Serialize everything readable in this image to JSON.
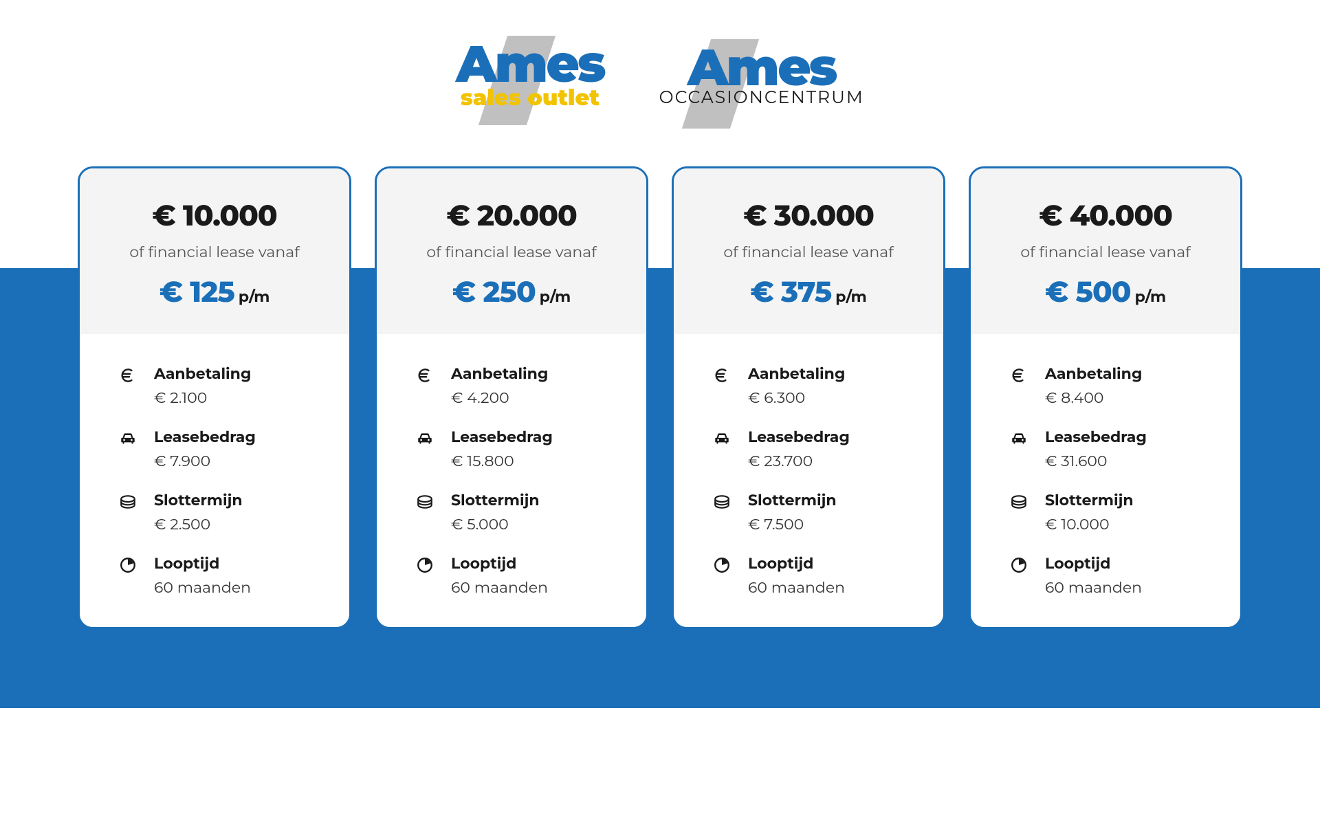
{
  "colors": {
    "brand_blue": "#1b6fb8",
    "accent_yellow": "#f2c300",
    "logo_gray": "#c0c0c0",
    "header_bg": "#f4f4f4",
    "text_dark": "#1a1a1a",
    "text_mid": "#555555",
    "white": "#ffffff"
  },
  "logos": [
    {
      "main": "Ames",
      "sub": "sales outlet",
      "sub_style": "yellow"
    },
    {
      "main": "Ames",
      "sub": "OCCASIONCENTRUM",
      "sub_style": "black"
    }
  ],
  "cards": [
    {
      "price": "€ 10.000",
      "subtext": "of financial lease vanaf",
      "monthly_price": "€ 125",
      "monthly_suffix": "p/m",
      "rows": [
        {
          "icon": "euro",
          "label": "Aanbetaling",
          "value": "€ 2.100"
        },
        {
          "icon": "car",
          "label": "Leasebedrag",
          "value": "€ 7.900"
        },
        {
          "icon": "coin",
          "label": "Slottermijn",
          "value": "€ 2.500"
        },
        {
          "icon": "clock",
          "label": "Looptijd",
          "value": "60 maanden"
        }
      ]
    },
    {
      "price": "€ 20.000",
      "subtext": "of financial lease vanaf",
      "monthly_price": "€ 250",
      "monthly_suffix": "p/m",
      "rows": [
        {
          "icon": "euro",
          "label": "Aanbetaling",
          "value": "€ 4.200"
        },
        {
          "icon": "car",
          "label": "Leasebedrag",
          "value": "€ 15.800"
        },
        {
          "icon": "coin",
          "label": "Slottermijn",
          "value": "€ 5.000"
        },
        {
          "icon": "clock",
          "label": "Looptijd",
          "value": "60 maanden"
        }
      ]
    },
    {
      "price": "€ 30.000",
      "subtext": "of financial lease vanaf",
      "monthly_price": "€ 375",
      "monthly_suffix": "p/m",
      "rows": [
        {
          "icon": "euro",
          "label": "Aanbetaling",
          "value": "€ 6.300"
        },
        {
          "icon": "car",
          "label": "Leasebedrag",
          "value": "€ 23.700"
        },
        {
          "icon": "coin",
          "label": "Slottermijn",
          "value": "€ 7.500"
        },
        {
          "icon": "clock",
          "label": "Looptijd",
          "value": "60 maanden"
        }
      ]
    },
    {
      "price": "€ 40.000",
      "subtext": "of financial lease vanaf",
      "monthly_price": "€ 500",
      "monthly_suffix": "p/m",
      "rows": [
        {
          "icon": "euro",
          "label": "Aanbetaling",
          "value": "€ 8.400"
        },
        {
          "icon": "car",
          "label": "Leasebedrag",
          "value": "€ 31.600"
        },
        {
          "icon": "coin",
          "label": "Slottermijn",
          "value": "€ 10.000"
        },
        {
          "icon": "clock",
          "label": "Looptijd",
          "value": "60 maanden"
        }
      ]
    }
  ]
}
